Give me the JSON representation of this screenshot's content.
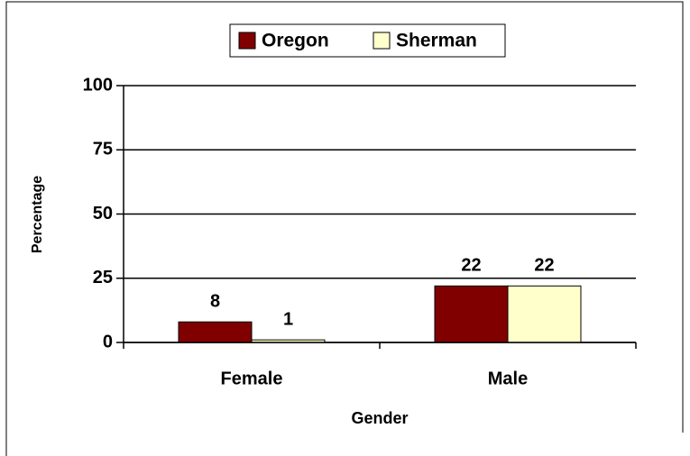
{
  "chart_data": {
    "type": "bar",
    "x_label": "Gender",
    "y_label": "Percentage",
    "categories": [
      "Female",
      "Male"
    ],
    "series": [
      {
        "name": "Oregon",
        "color": "#800000",
        "values": [
          8,
          22
        ]
      },
      {
        "name": "Sherman",
        "color": "#ffffcc",
        "values": [
          1,
          22
        ]
      }
    ],
    "ylim": [
      0,
      100
    ],
    "yticks": [
      0,
      25,
      50,
      75,
      100
    ],
    "grid": true,
    "legend": "top"
  }
}
